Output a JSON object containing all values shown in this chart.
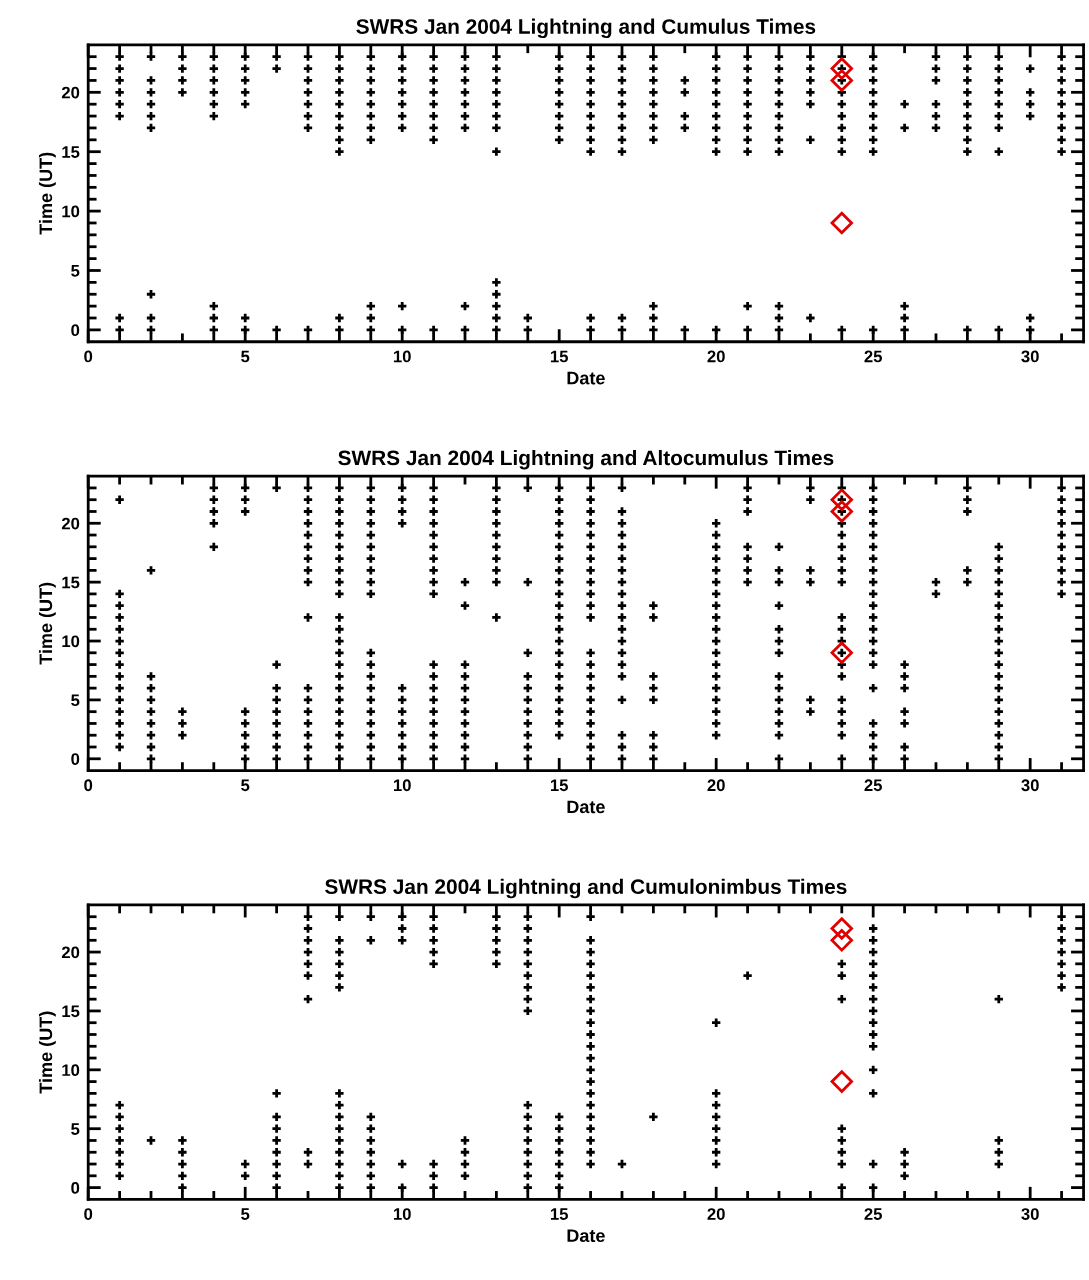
{
  "chart_data": [
    {
      "type": "scatter",
      "title": "SWRS Jan 2004 Lightning and Cumulus Times",
      "xlabel": "Date",
      "ylabel": "Time (UT)",
      "xlim": [
        0,
        31.7
      ],
      "ylim": [
        -1,
        24
      ],
      "xticks": [
        0,
        5,
        10,
        15,
        20,
        25,
        30
      ],
      "yticks": [
        0,
        5,
        10,
        15,
        20
      ],
      "grid": false,
      "series": [
        {
          "color": "#000000",
          "marker": "cross",
          "x": [
            1,
            1,
            1,
            1,
            1,
            1,
            1,
            1,
            2,
            2,
            2,
            2,
            2,
            2,
            2,
            2,
            2,
            3,
            3,
            3,
            3,
            4,
            4,
            4,
            4,
            4,
            4,
            4,
            4,
            4,
            5,
            5,
            5,
            5,
            5,
            5,
            5,
            6,
            6,
            6,
            7,
            7,
            7,
            7,
            7,
            7,
            7,
            7,
            8,
            8,
            8,
            8,
            8,
            8,
            8,
            8,
            8,
            8,
            8,
            9,
            9,
            9,
            9,
            9,
            9,
            9,
            9,
            9,
            9,
            9,
            10,
            10,
            10,
            10,
            10,
            10,
            10,
            10,
            10,
            11,
            11,
            11,
            11,
            11,
            11,
            11,
            11,
            11,
            12,
            12,
            12,
            12,
            12,
            12,
            12,
            12,
            12,
            13,
            13,
            13,
            13,
            13,
            13,
            13,
            13,
            13,
            13,
            13,
            13,
            13,
            14,
            14,
            15,
            15,
            15,
            15,
            15,
            15,
            15,
            15,
            16,
            16,
            16,
            16,
            16,
            16,
            16,
            16,
            16,
            16,
            16,
            17,
            17,
            17,
            17,
            17,
            17,
            17,
            17,
            17,
            17,
            17,
            18,
            18,
            18,
            18,
            18,
            18,
            18,
            18,
            18,
            18,
            18,
            19,
            19,
            19,
            19,
            19,
            20,
            20,
            20,
            20,
            20,
            20,
            20,
            20,
            20,
            20,
            21,
            21,
            21,
            21,
            21,
            21,
            21,
            21,
            21,
            21,
            21,
            22,
            22,
            22,
            22,
            22,
            22,
            22,
            22,
            22,
            22,
            22,
            22,
            23,
            23,
            23,
            23,
            23,
            23,
            23,
            24,
            24,
            24,
            24,
            24,
            24,
            24,
            24,
            24,
            24,
            25,
            25,
            25,
            25,
            25,
            25,
            25,
            25,
            25,
            25,
            26,
            26,
            26,
            26,
            26,
            27,
            27,
            27,
            27,
            27,
            27,
            28,
            28,
            28,
            28,
            28,
            28,
            28,
            28,
            28,
            28,
            29,
            29,
            29,
            29,
            29,
            29,
            29,
            29,
            29,
            30,
            30,
            30,
            30,
            30,
            30,
            31,
            31,
            31,
            31,
            31,
            31,
            31,
            31,
            31
          ],
          "values": [
            23,
            22,
            21,
            20,
            19,
            18,
            1,
            0,
            23,
            21,
            20,
            19,
            18,
            17,
            3,
            1,
            0,
            23,
            22,
            21,
            20,
            23,
            22,
            21,
            20,
            19,
            18,
            2,
            1,
            0,
            23,
            22,
            21,
            20,
            19,
            1,
            0,
            23,
            22,
            0,
            23,
            22,
            21,
            20,
            19,
            18,
            17,
            0,
            23,
            22,
            21,
            20,
            19,
            18,
            17,
            16,
            15,
            1,
            0,
            23,
            22,
            21,
            20,
            19,
            18,
            17,
            16,
            2,
            1,
            0,
            23,
            22,
            21,
            20,
            19,
            18,
            17,
            2,
            0,
            23,
            22,
            21,
            20,
            19,
            18,
            17,
            16,
            0,
            23,
            22,
            21,
            20,
            19,
            18,
            17,
            2,
            0,
            23,
            22,
            21,
            20,
            19,
            18,
            17,
            15,
            4,
            3,
            2,
            1,
            0,
            1,
            0,
            23,
            22,
            21,
            20,
            19,
            18,
            17,
            16,
            23,
            22,
            21,
            20,
            19,
            18,
            17,
            16,
            15,
            1,
            0,
            23,
            22,
            21,
            20,
            19,
            18,
            17,
            16,
            15,
            1,
            0,
            23,
            22,
            21,
            20,
            19,
            18,
            17,
            16,
            2,
            1,
            0,
            21,
            20,
            18,
            17,
            0,
            23,
            22,
            21,
            20,
            19,
            18,
            17,
            16,
            15,
            0,
            23,
            22,
            21,
            20,
            19,
            18,
            17,
            16,
            15,
            2,
            0,
            23,
            22,
            21,
            20,
            19,
            18,
            17,
            16,
            15,
            2,
            1,
            0,
            23,
            22,
            21,
            20,
            19,
            16,
            1,
            23,
            22,
            21,
            20,
            19,
            18,
            17,
            16,
            15,
            0,
            23,
            22,
            21,
            20,
            19,
            18,
            17,
            16,
            15,
            0,
            19,
            17,
            2,
            1,
            0,
            23,
            22,
            21,
            19,
            18,
            17,
            23,
            22,
            21,
            20,
            19,
            18,
            17,
            16,
            15,
            0,
            23,
            22,
            21,
            20,
            19,
            18,
            17,
            15,
            0,
            22,
            20,
            19,
            18,
            1,
            0,
            23,
            22,
            21,
            20,
            19,
            18,
            17,
            16,
            15
          ]
        },
        {
          "color": "#e00000",
          "marker": "diamond",
          "x": [
            24,
            24,
            24
          ],
          "values": [
            22,
            21,
            9
          ]
        }
      ]
    },
    {
      "type": "scatter",
      "title": "SWRS Jan 2004 Lightning and Altocumulus Times",
      "xlabel": "Date",
      "ylabel": "Time (UT)",
      "xlim": [
        0,
        31.7
      ],
      "ylim": [
        -1,
        24
      ],
      "xticks": [
        0,
        5,
        10,
        15,
        20,
        25,
        30
      ],
      "yticks": [
        0,
        5,
        10,
        15,
        20
      ],
      "grid": false,
      "series": [
        {
          "color": "#000000",
          "marker": "cross",
          "x": [
            1,
            1,
            1,
            1,
            1,
            1,
            1,
            1,
            1,
            1,
            1,
            1,
            1,
            1,
            1,
            2,
            2,
            2,
            2,
            2,
            2,
            2,
            2,
            2,
            3,
            3,
            3,
            4,
            4,
            4,
            4,
            4,
            5,
            5,
            5,
            5,
            5,
            5,
            5,
            5,
            6,
            6,
            6,
            6,
            6,
            6,
            6,
            6,
            6,
            7,
            7,
            7,
            7,
            7,
            7,
            7,
            7,
            7,
            7,
            7,
            7,
            7,
            7,
            7,
            7,
            7,
            8,
            8,
            8,
            8,
            8,
            8,
            8,
            8,
            8,
            8,
            8,
            8,
            8,
            8,
            8,
            8,
            8,
            8,
            8,
            8,
            8,
            8,
            8,
            9,
            9,
            9,
            9,
            9,
            9,
            9,
            9,
            9,
            9,
            9,
            9,
            9,
            9,
            9,
            9,
            9,
            9,
            9,
            9,
            10,
            10,
            10,
            10,
            10,
            10,
            10,
            10,
            10,
            10,
            10,
            11,
            11,
            11,
            11,
            11,
            11,
            11,
            11,
            11,
            11,
            11,
            11,
            11,
            11,
            11,
            11,
            11,
            11,
            11,
            12,
            12,
            12,
            12,
            12,
            12,
            12,
            12,
            12,
            12,
            12,
            13,
            13,
            13,
            13,
            13,
            13,
            13,
            13,
            13,
            13,
            14,
            14,
            14,
            14,
            14,
            14,
            14,
            14,
            14,
            14,
            14,
            15,
            15,
            15,
            15,
            15,
            15,
            15,
            15,
            15,
            15,
            15,
            15,
            15,
            15,
            15,
            15,
            15,
            15,
            15,
            15,
            15,
            15,
            16,
            16,
            16,
            16,
            16,
            16,
            16,
            16,
            16,
            16,
            16,
            16,
            16,
            16,
            16,
            16,
            16,
            16,
            16,
            16,
            16,
            16,
            17,
            17,
            17,
            17,
            17,
            17,
            17,
            17,
            17,
            17,
            17,
            17,
            17,
            17,
            17,
            17,
            17,
            17,
            17,
            17,
            18,
            18,
            18,
            18,
            18,
            18,
            18,
            18,
            20,
            20,
            20,
            20,
            20,
            20,
            20,
            20,
            20,
            20,
            20,
            20,
            20,
            20,
            20,
            20,
            20,
            20,
            20,
            21,
            21,
            21,
            21,
            21,
            21,
            21,
            22,
            22,
            22,
            22,
            22,
            22,
            22,
            22,
            22,
            22,
            22,
            22,
            22,
            22,
            23,
            23,
            23,
            23,
            23,
            23,
            24,
            24,
            24,
            24,
            24,
            24,
            24,
            24,
            24,
            24,
            24,
            24,
            24,
            24,
            24,
            24,
            24,
            24,
            24,
            24,
            25,
            25,
            25,
            25,
            25,
            25,
            25,
            25,
            25,
            25,
            25,
            25,
            25,
            25,
            25,
            25,
            25,
            25,
            25,
            25,
            25,
            26,
            26,
            26,
            26,
            26,
            26,
            26,
            27,
            27,
            28,
            28,
            28,
            28,
            28,
            29,
            29,
            29,
            29,
            29,
            29,
            29,
            29,
            29,
            29,
            29,
            29,
            29,
            29,
            29,
            29,
            29,
            29,
            29,
            31,
            31,
            31,
            31,
            31,
            31,
            31,
            31,
            31,
            31
          ],
          "values": [
            22,
            14,
            13,
            12,
            11,
            10,
            9,
            8,
            7,
            6,
            5,
            4,
            3,
            2,
            1,
            16,
            7,
            6,
            5,
            4,
            3,
            2,
            1,
            0,
            4,
            3,
            2,
            23,
            22,
            21,
            20,
            18,
            23,
            22,
            21,
            4,
            3,
            2,
            1,
            0,
            23,
            8,
            6,
            5,
            4,
            3,
            2,
            1,
            0,
            23,
            22,
            21,
            20,
            19,
            18,
            17,
            16,
            15,
            12,
            6,
            5,
            4,
            3,
            2,
            1,
            0,
            23,
            22,
            21,
            20,
            19,
            18,
            17,
            16,
            15,
            14,
            12,
            11,
            10,
            9,
            8,
            7,
            6,
            5,
            4,
            3,
            2,
            1,
            0,
            23,
            22,
            21,
            20,
            19,
            18,
            17,
            16,
            15,
            14,
            9,
            8,
            7,
            6,
            5,
            4,
            3,
            2,
            1,
            0,
            23,
            22,
            21,
            20,
            6,
            5,
            4,
            3,
            2,
            1,
            0,
            23,
            22,
            21,
            20,
            19,
            18,
            17,
            16,
            15,
            14,
            8,
            7,
            6,
            5,
            4,
            3,
            2,
            1,
            0,
            15,
            13,
            8,
            7,
            6,
            5,
            4,
            3,
            2,
            1,
            0,
            23,
            22,
            21,
            20,
            19,
            18,
            17,
            16,
            15,
            12,
            23,
            15,
            9,
            7,
            6,
            5,
            4,
            3,
            2,
            1,
            0,
            23,
            22,
            21,
            20,
            19,
            18,
            17,
            16,
            15,
            14,
            13,
            12,
            11,
            10,
            9,
            8,
            7,
            6,
            5,
            4,
            3,
            2,
            23,
            22,
            21,
            20,
            19,
            18,
            17,
            16,
            15,
            14,
            13,
            12,
            9,
            8,
            7,
            6,
            5,
            4,
            3,
            2,
            1,
            0,
            23,
            21,
            20,
            19,
            18,
            17,
            16,
            15,
            14,
            13,
            12,
            11,
            10,
            9,
            8,
            7,
            5,
            2,
            1,
            0,
            13,
            12,
            7,
            6,
            5,
            2,
            1,
            0,
            20,
            19,
            18,
            17,
            16,
            15,
            14,
            13,
            12,
            11,
            10,
            9,
            8,
            7,
            6,
            5,
            4,
            3,
            2,
            23,
            22,
            21,
            18,
            17,
            16,
            15,
            18,
            16,
            15,
            13,
            11,
            10,
            9,
            7,
            6,
            5,
            4,
            3,
            2,
            0,
            23,
            22,
            16,
            15,
            5,
            4,
            23,
            22,
            21,
            20,
            19,
            18,
            17,
            16,
            15,
            12,
            11,
            10,
            9,
            8,
            7,
            5,
            4,
            3,
            2,
            0,
            23,
            22,
            21,
            20,
            19,
            18,
            17,
            16,
            15,
            14,
            13,
            12,
            11,
            10,
            9,
            8,
            6,
            3,
            2,
            1,
            0,
            8,
            7,
            6,
            4,
            3,
            1,
            0,
            15,
            14,
            23,
            22,
            21,
            16,
            15,
            18,
            17,
            16,
            15,
            14,
            13,
            12,
            11,
            10,
            9,
            8,
            7,
            6,
            5,
            4,
            3,
            2,
            1,
            0,
            23,
            22,
            21,
            20,
            19,
            18,
            17,
            16,
            15,
            14
          ]
        },
        {
          "color": "#e00000",
          "marker": "diamond",
          "x": [
            24,
            24,
            24
          ],
          "values": [
            22,
            21,
            9
          ]
        }
      ]
    },
    {
      "type": "scatter",
      "title": "SWRS Jan 2004 Lightning and Cumulonimbus Times",
      "xlabel": "Date",
      "ylabel": "Time (UT)",
      "xlim": [
        0,
        31.7
      ],
      "ylim": [
        -1,
        24
      ],
      "xticks": [
        0,
        5,
        10,
        15,
        20,
        25,
        30
      ],
      "yticks": [
        0,
        5,
        10,
        15,
        20
      ],
      "grid": false,
      "series": [
        {
          "color": "#000000",
          "marker": "cross",
          "x": [
            1,
            1,
            1,
            1,
            1,
            1,
            1,
            2,
            3,
            3,
            3,
            3,
            3,
            5,
            5,
            6,
            6,
            6,
            6,
            6,
            6,
            6,
            6,
            7,
            7,
            7,
            7,
            7,
            7,
            7,
            7,
            7,
            8,
            8,
            8,
            8,
            8,
            8,
            8,
            8,
            8,
            8,
            8,
            8,
            8,
            8,
            8,
            9,
            9,
            9,
            9,
            9,
            9,
            9,
            9,
            9,
            10,
            10,
            10,
            10,
            10,
            11,
            11,
            11,
            11,
            11,
            11,
            11,
            11,
            12,
            12,
            12,
            12,
            13,
            13,
            13,
            13,
            13,
            14,
            14,
            14,
            14,
            14,
            14,
            14,
            14,
            14,
            14,
            14,
            14,
            14,
            14,
            14,
            14,
            14,
            15,
            15,
            15,
            15,
            15,
            15,
            15,
            16,
            16,
            16,
            16,
            16,
            16,
            16,
            16,
            16,
            16,
            16,
            16,
            16,
            16,
            16,
            16,
            16,
            16,
            16,
            16,
            16,
            17,
            18,
            20,
            20,
            20,
            20,
            20,
            20,
            20,
            20,
            21,
            24,
            24,
            24,
            24,
            24,
            24,
            24,
            24,
            25,
            25,
            25,
            25,
            25,
            25,
            25,
            25,
            25,
            25,
            25,
            25,
            25,
            25,
            25,
            26,
            26,
            26,
            29,
            29,
            29,
            29,
            31,
            31,
            31,
            31,
            31,
            31,
            31
          ],
          "values": [
            7,
            6,
            5,
            4,
            3,
            2,
            1,
            4,
            4,
            3,
            2,
            1,
            0,
            2,
            1,
            8,
            6,
            5,
            4,
            3,
            2,
            1,
            0,
            23,
            22,
            21,
            20,
            19,
            18,
            16,
            3,
            2,
            23,
            21,
            20,
            19,
            18,
            17,
            8,
            7,
            6,
            5,
            4,
            3,
            2,
            1,
            0,
            23,
            21,
            6,
            5,
            4,
            3,
            2,
            1,
            0,
            23,
            22,
            21,
            2,
            0,
            23,
            22,
            21,
            20,
            19,
            2,
            1,
            0,
            4,
            3,
            2,
            1,
            23,
            22,
            21,
            20,
            19,
            23,
            22,
            21,
            20,
            19,
            18,
            17,
            16,
            15,
            7,
            6,
            5,
            4,
            3,
            2,
            1,
            0,
            6,
            5,
            4,
            3,
            2,
            1,
            0,
            23,
            21,
            20,
            19,
            18,
            17,
            16,
            15,
            14,
            13,
            12,
            11,
            10,
            9,
            8,
            7,
            6,
            5,
            4,
            3,
            2,
            2,
            6,
            14,
            8,
            7,
            6,
            5,
            4,
            3,
            2,
            18,
            19,
            18,
            16,
            5,
            4,
            3,
            2,
            0,
            22,
            21,
            20,
            19,
            18,
            17,
            16,
            15,
            14,
            13,
            12,
            10,
            8,
            2,
            0,
            3,
            2,
            1,
            16,
            4,
            3,
            2,
            23,
            22,
            21,
            20,
            19,
            18,
            17
          ]
        },
        {
          "color": "#e00000",
          "marker": "diamond",
          "x": [
            24,
            24,
            24
          ],
          "values": [
            22,
            21,
            9
          ]
        }
      ]
    }
  ]
}
